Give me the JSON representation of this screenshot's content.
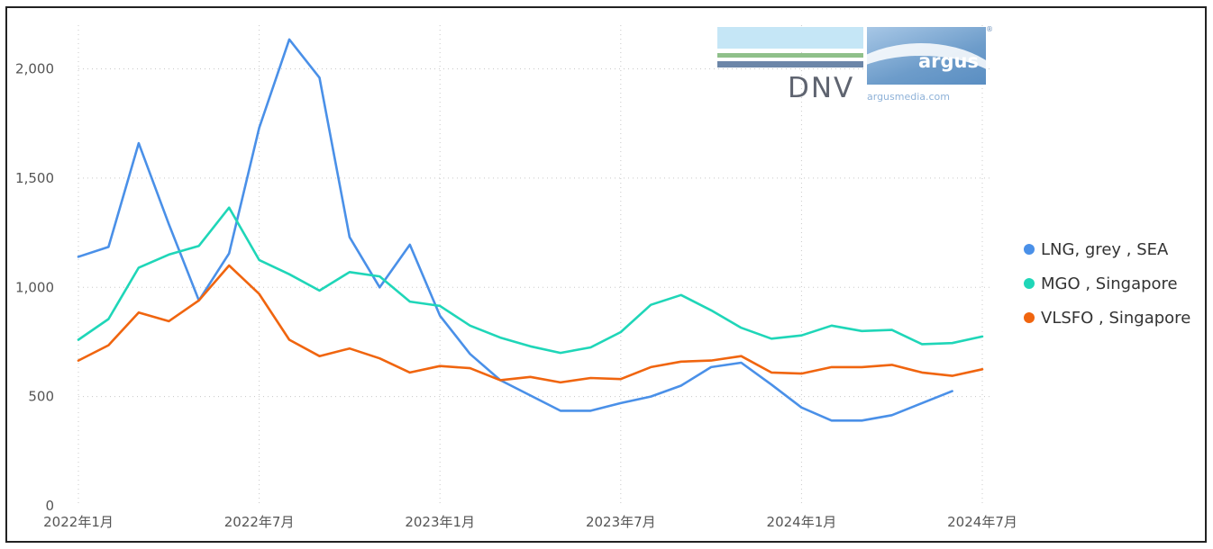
{
  "chart_data": {
    "type": "line",
    "x": [
      "2022-01",
      "2022-02",
      "2022-03",
      "2022-04",
      "2022-05",
      "2022-06",
      "2022-07",
      "2022-08",
      "2022-09",
      "2022-10",
      "2022-11",
      "2022-12",
      "2023-01",
      "2023-02",
      "2023-03",
      "2023-04",
      "2023-05",
      "2023-06",
      "2023-07",
      "2023-08",
      "2023-09",
      "2023-10",
      "2023-11",
      "2023-12",
      "2024-01",
      "2024-02",
      "2024-03",
      "2024-04",
      "2024-05",
      "2024-06",
      "2024-07"
    ],
    "x_tick_labels": [
      "2022年1月",
      "2022年7月",
      "2023年1月",
      "2023年7月",
      "2024年1月",
      "2024年7月"
    ],
    "y_ticks": [
      "0",
      "500",
      "1,000",
      "1,500",
      "2,000"
    ],
    "ylim": [
      0,
      2200
    ],
    "grid": "dotted",
    "legend_position": "right",
    "series": [
      {
        "name": "LNG, grey , SEA",
        "color": "#4a90e8",
        "values": [
          1140,
          1185,
          1660,
          1290,
          940,
          1155,
          1730,
          2135,
          1960,
          1230,
          1000,
          1195,
          870,
          695,
          575,
          505,
          435,
          435,
          470,
          500,
          550,
          635,
          655,
          555,
          450,
          390,
          390,
          415,
          470,
          525,
          null
        ]
      },
      {
        "name": "MGO , Singapore",
        "color": "#1fd6b8",
        "values": [
          760,
          855,
          1090,
          1150,
          1190,
          1365,
          1125,
          1060,
          985,
          1070,
          1050,
          935,
          915,
          825,
          770,
          730,
          700,
          725,
          795,
          920,
          965,
          895,
          815,
          765,
          780,
          825,
          800,
          805,
          740,
          745,
          775
        ]
      },
      {
        "name": "VLSFO , Singapore",
        "color": "#f0650f",
        "values": [
          665,
          735,
          885,
          845,
          940,
          1100,
          970,
          760,
          685,
          720,
          675,
          610,
          640,
          630,
          575,
          590,
          565,
          585,
          580,
          635,
          660,
          665,
          685,
          610,
          605,
          635,
          635,
          645,
          610,
          595,
          625
        ]
      }
    ]
  },
  "logos": {
    "dnv": "DNV",
    "argus": "argus",
    "argus_url": "argusmedia.com",
    "registered": "®"
  }
}
